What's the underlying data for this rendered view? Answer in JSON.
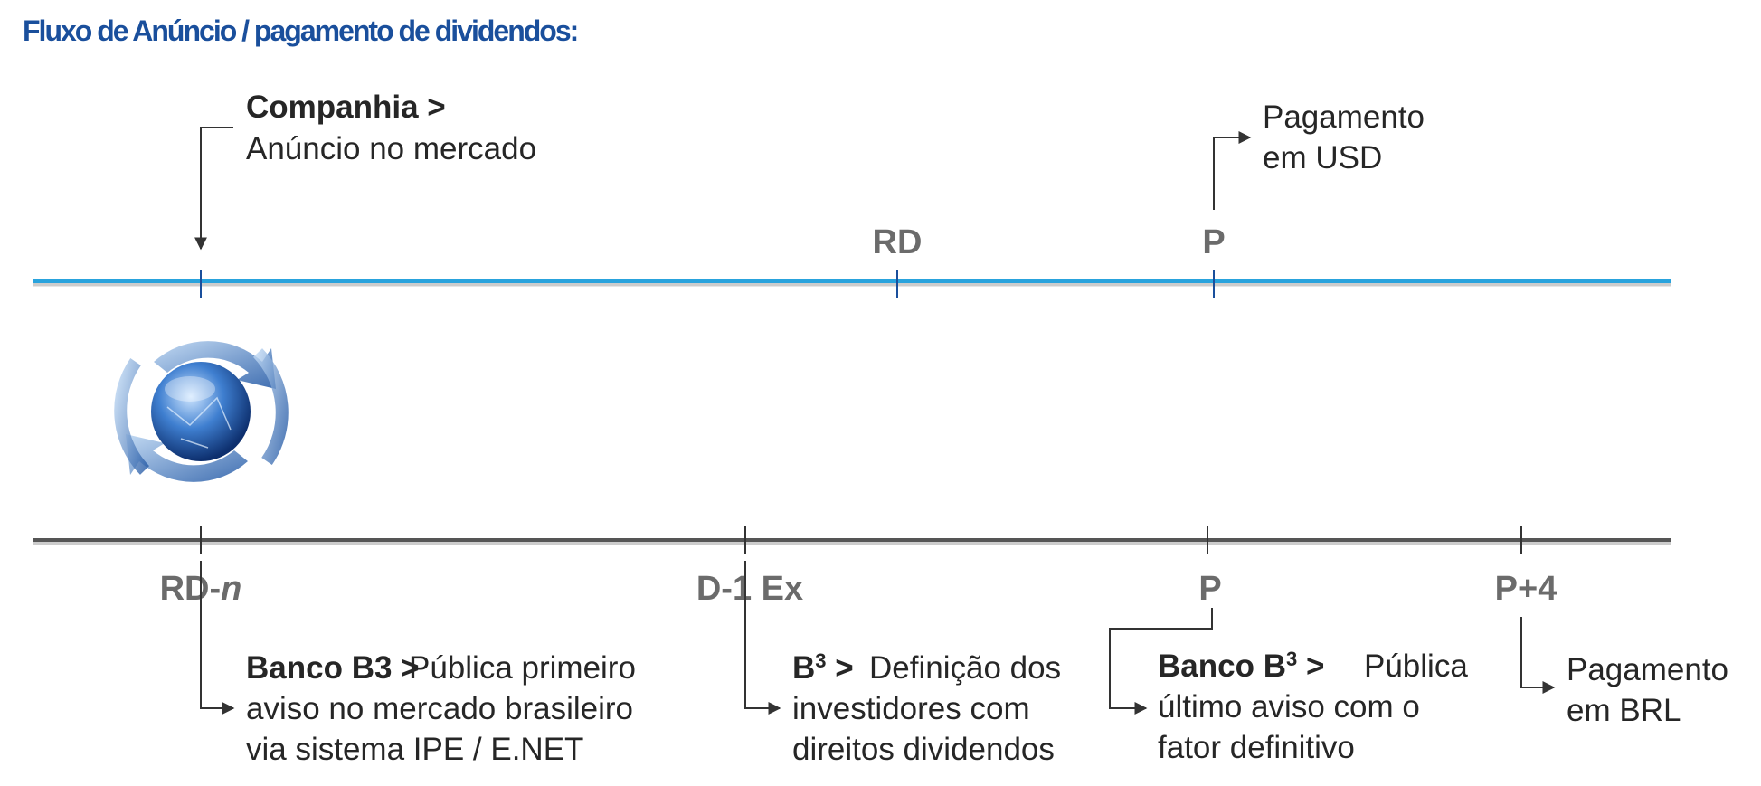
{
  "title": "Fluxo de Anúncio / pagamento de dividendos:",
  "top": {
    "announce": {
      "head": "Companhia >",
      "lines": [
        "Anúncio no mercado"
      ]
    },
    "markers": [
      "RD",
      "P"
    ],
    "payment": {
      "lines": [
        "Pagamento",
        "em USD"
      ]
    }
  },
  "bottom": {
    "markers": {
      "rd_n": [
        "RD-",
        "n"
      ],
      "d1ex": "D-1 Ex",
      "p": "P",
      "p4": "P+4"
    },
    "notes": [
      {
        "head": "Banco B3 >",
        "lines": [
          "Pública primeiro",
          "aviso no mercado brasileiro",
          "via sistema IPE / E.NET"
        ]
      },
      {
        "head": [
          "B",
          "3",
          " >"
        ],
        "lines": [
          "Definição dos",
          "investidores com",
          "direitos dividendos"
        ]
      },
      {
        "head": [
          "Banco B",
          "3",
          " >"
        ],
        "lines": [
          "Pública",
          "último aviso com o",
          "fator definitivo"
        ]
      },
      {
        "lines": [
          "Pagamento",
          "em BRL"
        ]
      }
    ]
  }
}
